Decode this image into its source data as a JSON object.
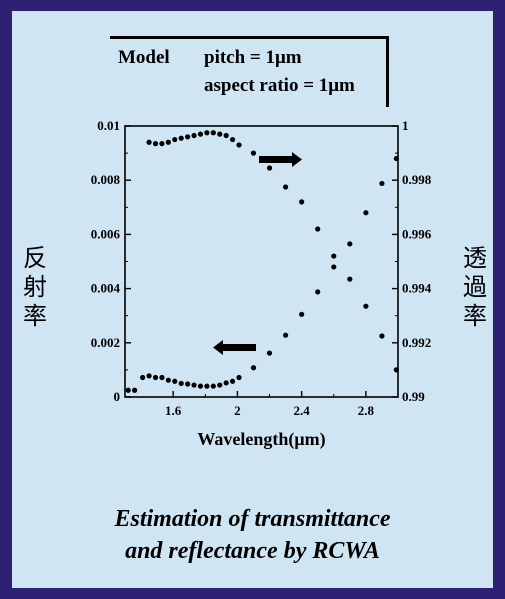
{
  "model": {
    "label": "Model",
    "pitch": "pitch = 1μm",
    "aspect": "aspect ratio = 1μm"
  },
  "left_axis_label": [
    "反",
    "射",
    "率"
  ],
  "right_axis_label": [
    "透",
    "過",
    "率"
  ],
  "caption": {
    "line1": "Estimation of transmittance",
    "line2": "and reflectance by RCWA"
  },
  "chart_data": {
    "type": "scatter",
    "xlabel": "Wavelength(μm)",
    "xlim": [
      1.3,
      3.0
    ],
    "x_ticks": [
      "1.6",
      "2",
      "2.4",
      "2.8"
    ],
    "x_tick_values": [
      1.6,
      2.0,
      2.4,
      2.8
    ],
    "ylim_left": [
      0,
      0.01
    ],
    "left_ticks": [
      "0",
      "0.002",
      "0.004",
      "0.006",
      "0.008",
      "0.01"
    ],
    "left_tick_values": [
      0,
      0.002,
      0.004,
      0.006,
      0.008,
      0.01
    ],
    "ylim_right": [
      0.99,
      1.0
    ],
    "right_ticks": [
      "0.99",
      "0.992",
      "0.994",
      "0.996",
      "0.998",
      "1"
    ],
    "right_tick_values": [
      0.99,
      0.992,
      0.994,
      0.996,
      0.998,
      1.0
    ],
    "series": [
      {
        "axis": "left",
        "x": [
          1.32,
          1.36,
          1.41,
          1.45,
          1.49,
          1.53,
          1.57,
          1.61,
          1.65,
          1.69,
          1.73,
          1.77,
          1.81,
          1.85,
          1.89,
          1.93,
          1.97,
          2.01,
          2.1,
          2.2,
          2.3,
          2.4,
          2.5,
          2.6,
          2.7,
          2.8,
          2.9,
          2.99
        ],
        "values": [
          0.00025,
          0.00025,
          0.00072,
          0.00078,
          0.00072,
          0.00072,
          0.00062,
          0.00058,
          0.0005,
          0.00048,
          0.00044,
          0.0004,
          0.0004,
          0.0004,
          0.00044,
          0.00052,
          0.00058,
          0.00072,
          0.00108,
          0.00162,
          0.00228,
          0.00305,
          0.00388,
          0.0048,
          0.00565,
          0.0068,
          0.00788,
          0.0088
        ]
      },
      {
        "axis": "right",
        "x": [
          1.45,
          1.49,
          1.53,
          1.57,
          1.61,
          1.65,
          1.69,
          1.73,
          1.77,
          1.81,
          1.85,
          1.89,
          1.93,
          1.97,
          2.01,
          2.1,
          2.2,
          2.3,
          2.4,
          2.5,
          2.6,
          2.7,
          2.8,
          2.9,
          2.99
        ],
        "values": [
          0.9994,
          0.99935,
          0.99935,
          0.9994,
          0.9995,
          0.99955,
          0.9996,
          0.99965,
          0.9997,
          0.99975,
          0.99975,
          0.9997,
          0.99965,
          0.9995,
          0.9993,
          0.999,
          0.99845,
          0.99775,
          0.9972,
          0.9962,
          0.9952,
          0.99435,
          0.99335,
          0.99225,
          0.991
        ]
      }
    ]
  }
}
